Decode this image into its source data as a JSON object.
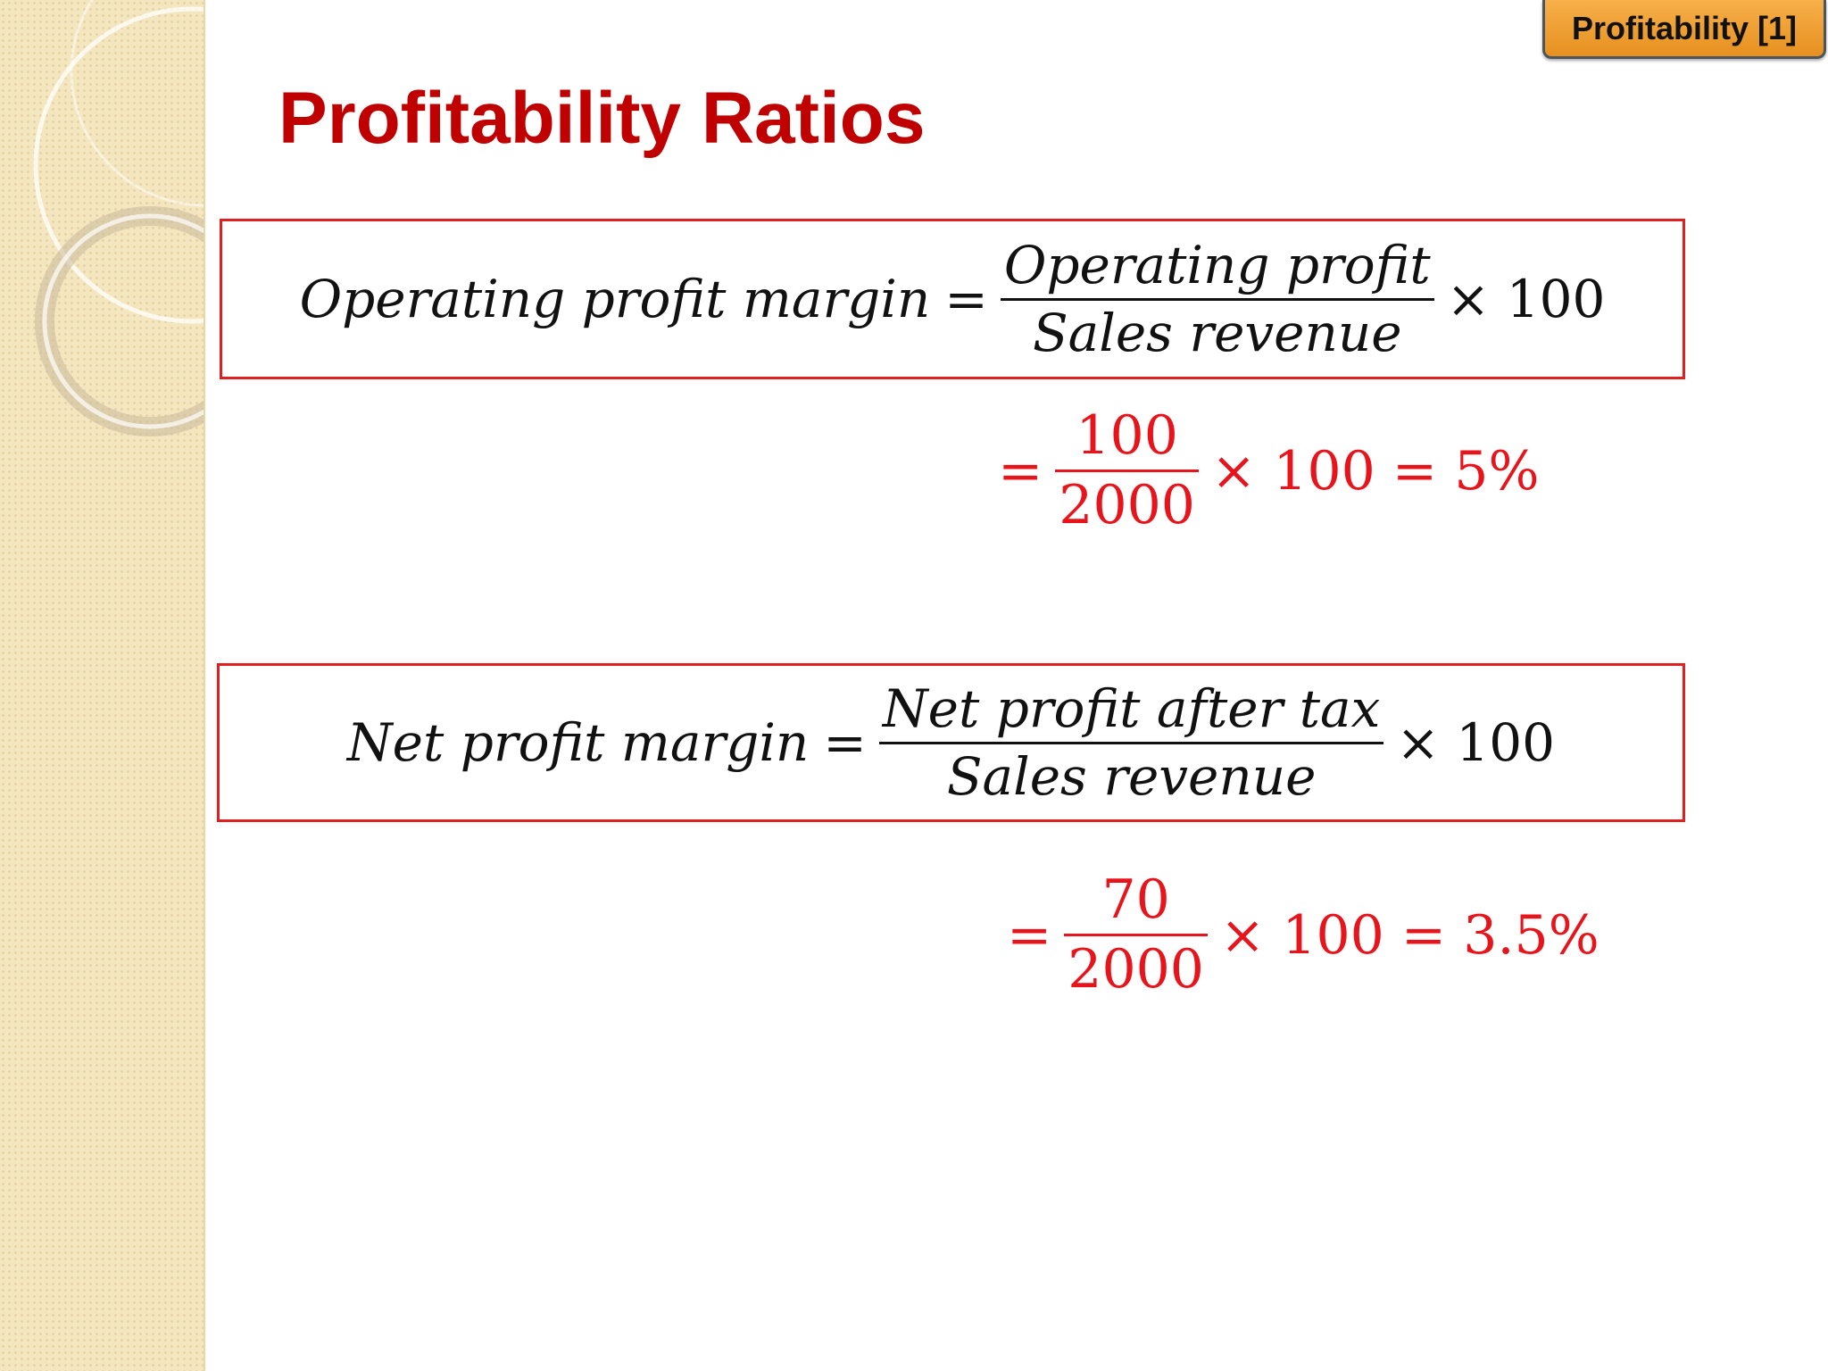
{
  "badge": {
    "label": "Profitability [1]"
  },
  "title": "Profitability Ratios",
  "formulas": [
    {
      "lhs": "Operating profit margin",
      "equals": "=",
      "numerator": "Operating profit",
      "denominator": "Sales revenue",
      "multiplier": "× 100"
    },
    {
      "lhs": "Net profit margin",
      "equals": "=",
      "numerator": "Net profit after tax",
      "denominator": "Sales revenue",
      "multiplier": "× 100"
    }
  ],
  "results": [
    {
      "equals": "=",
      "numerator": "100",
      "denominator": "2000",
      "tail": "× 100 = 5%"
    },
    {
      "equals": "=",
      "numerator": "70",
      "denominator": "2000",
      "tail": "× 100 = 3.5%"
    }
  ],
  "colors": {
    "title": "#c00000",
    "box_border": "#e02020",
    "result_text": "#e8141c",
    "badge_fill": "#f0a030"
  }
}
